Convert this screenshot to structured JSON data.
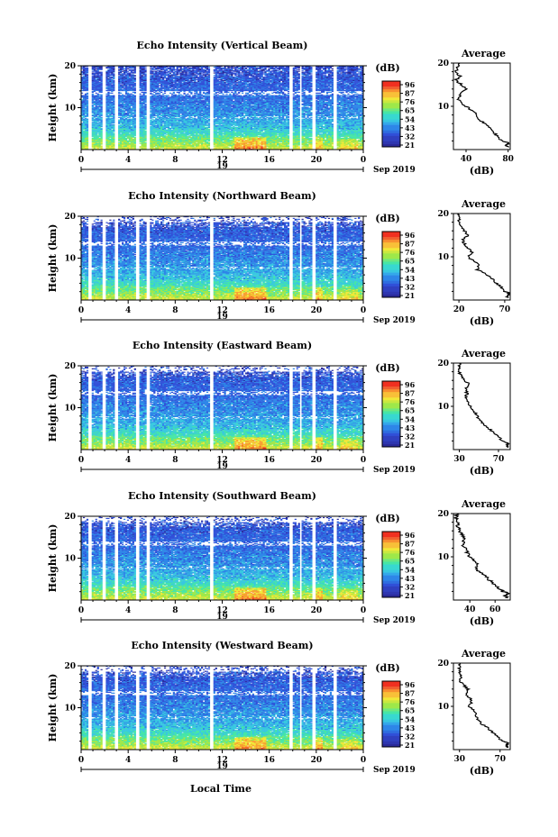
{
  "figure": {
    "xlabel": "Local Time",
    "common": {
      "ylabel": "Height (km)",
      "y_ticks": [
        10,
        20
      ],
      "x_ticks": [
        "0",
        "4",
        "8",
        "12",
        "16",
        "20",
        "0"
      ],
      "date_day": "19",
      "date_month_year": "Sep 2019",
      "colorbar_unit": "(dB)",
      "colorbar_ticks": [
        "96",
        "87",
        "76",
        "65",
        "54",
        "43",
        "32",
        "21"
      ],
      "avg_title": "Average",
      "avg_xlabel": "(dB)"
    }
  },
  "colors": {
    "scale": [
      "#2a2a9a",
      "#3050d8",
      "#2e86e8",
      "#38c8e0",
      "#46e6a6",
      "#9ee84a",
      "#f0e838",
      "#f8a030",
      "#f03020"
    ]
  },
  "chart_data": [
    {
      "type": "heatmap",
      "title": "Echo Intensity (Vertical Beam)",
      "x_range": [
        0,
        24
      ],
      "y_range": [
        0,
        20
      ],
      "color_range": [
        21,
        96
      ],
      "avg_profile": {
        "x_ticks": [
          "40",
          "80"
        ],
        "xlim": [
          28,
          82
        ],
        "height_km": [
          0.5,
          1,
          1.5,
          2,
          3,
          4,
          5,
          6,
          7,
          8,
          9,
          10,
          11,
          12,
          13,
          14,
          15,
          16,
          17,
          18,
          19,
          20
        ],
        "value_db": [
          80,
          78,
          81,
          74,
          70,
          66,
          62,
          58,
          52,
          50,
          46,
          40,
          34,
          32,
          36,
          40,
          36,
          30,
          34,
          30,
          32,
          34
        ]
      }
    },
    {
      "type": "heatmap",
      "title": "Echo Intensity (Northward Beam)",
      "x_range": [
        0,
        24
      ],
      "y_range": [
        0,
        20
      ],
      "color_range": [
        21,
        96
      ],
      "avg_profile": {
        "x_ticks": [
          "20",
          "70"
        ],
        "xlim": [
          14,
          76
        ],
        "height_km": [
          0.5,
          1,
          1.5,
          2,
          3,
          4,
          5,
          6,
          7,
          8,
          9,
          10,
          11,
          12,
          13,
          14,
          15,
          16,
          17,
          18,
          19,
          20
        ],
        "value_db": [
          74,
          72,
          76,
          70,
          66,
          60,
          56,
          50,
          40,
          42,
          36,
          30,
          34,
          30,
          26,
          24,
          30,
          26,
          22,
          20,
          20,
          20
        ]
      }
    },
    {
      "type": "heatmap",
      "title": "Echo Intensity (Eastward Beam)",
      "x_range": [
        0,
        24
      ],
      "y_range": [
        0,
        20
      ],
      "color_range": [
        21,
        96
      ],
      "avg_profile": {
        "x_ticks": [
          "30",
          "70"
        ],
        "xlim": [
          24,
          82
        ],
        "height_km": [
          0.5,
          1,
          1.5,
          2,
          3,
          4,
          5,
          6,
          7,
          8,
          9,
          10,
          11,
          12,
          13,
          14,
          15,
          16,
          17,
          18,
          19,
          20
        ],
        "value_db": [
          80,
          78,
          80,
          74,
          70,
          64,
          60,
          54,
          50,
          48,
          44,
          42,
          38,
          36,
          38,
          36,
          40,
          36,
          32,
          30,
          30,
          30
        ]
      }
    },
    {
      "type": "heatmap",
      "title": "Echo Intensity (Southward Beam)",
      "x_range": [
        0,
        24
      ],
      "y_range": [
        0,
        20
      ],
      "color_range": [
        21,
        96
      ],
      "avg_profile": {
        "x_ticks": [
          "40",
          "60"
        ],
        "xlim": [
          27,
          72
        ],
        "height_km": [
          0.5,
          1,
          1.5,
          2,
          3,
          4,
          5,
          6,
          7,
          8,
          9,
          10,
          11,
          12,
          13,
          14,
          15,
          16,
          17,
          18,
          19,
          20
        ],
        "value_db": [
          70,
          68,
          71,
          66,
          62,
          58,
          54,
          50,
          46,
          46,
          44,
          40,
          38,
          36,
          34,
          36,
          34,
          32,
          30,
          30,
          29,
          30
        ]
      }
    },
    {
      "type": "heatmap",
      "title": "Echo Intensity (Westward Beam)",
      "x_range": [
        0,
        24
      ],
      "y_range": [
        0,
        20
      ],
      "color_range": [
        21,
        96
      ],
      "avg_profile": {
        "x_ticks": [
          "30",
          "70"
        ],
        "xlim": [
          24,
          80
        ],
        "height_km": [
          0.5,
          1,
          1.5,
          2,
          3,
          4,
          5,
          6,
          7,
          8,
          9,
          10,
          11,
          12,
          13,
          14,
          15,
          16,
          17,
          18,
          19,
          20
        ],
        "value_db": [
          78,
          76,
          78,
          72,
          68,
          62,
          58,
          52,
          48,
          46,
          44,
          40,
          42,
          40,
          36,
          38,
          34,
          30,
          32,
          30,
          30,
          30
        ]
      }
    }
  ]
}
